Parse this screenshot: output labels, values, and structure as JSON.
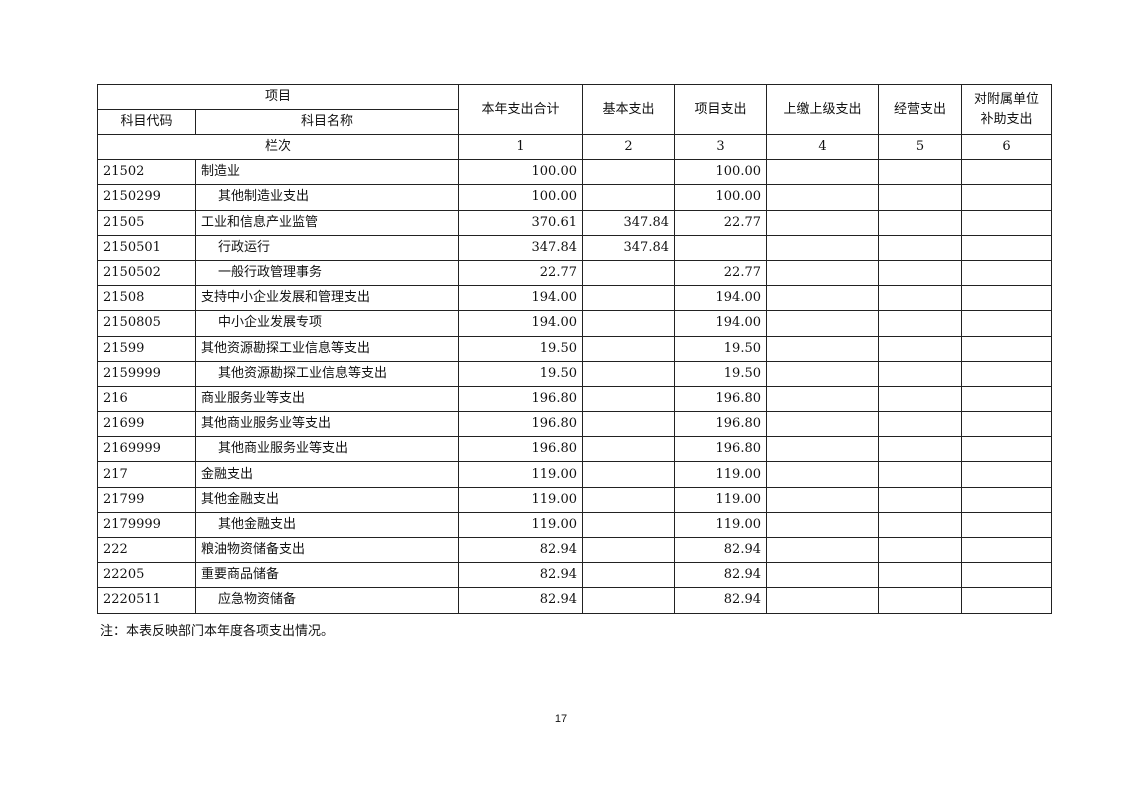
{
  "header": {
    "item": "项目",
    "code": "科目代码",
    "name": "科目名称",
    "row_index_label": "栏次",
    "columns": [
      "本年支出合计",
      "基本支出",
      "项目支出",
      "上缴上级支出",
      "经营支出",
      "对附属单位补助支出"
    ],
    "column_numbers": [
      "1",
      "2",
      "3",
      "4",
      "5",
      "6"
    ]
  },
  "rows": [
    {
      "code": "21502",
      "name": "制造业",
      "indent": false,
      "vals": [
        "100.00",
        "",
        "100.00",
        "",
        "",
        ""
      ]
    },
    {
      "code": "2150299",
      "name": "其他制造业支出",
      "indent": true,
      "vals": [
        "100.00",
        "",
        "100.00",
        "",
        "",
        ""
      ]
    },
    {
      "code": "21505",
      "name": "工业和信息产业监管",
      "indent": false,
      "vals": [
        "370.61",
        "347.84",
        "22.77",
        "",
        "",
        ""
      ]
    },
    {
      "code": "2150501",
      "name": "行政运行",
      "indent": true,
      "vals": [
        "347.84",
        "347.84",
        "",
        "",
        "",
        ""
      ]
    },
    {
      "code": "2150502",
      "name": "一般行政管理事务",
      "indent": true,
      "vals": [
        "22.77",
        "",
        "22.77",
        "",
        "",
        ""
      ]
    },
    {
      "code": "21508",
      "name": "支持中小企业发展和管理支出",
      "indent": false,
      "vals": [
        "194.00",
        "",
        "194.00",
        "",
        "",
        ""
      ]
    },
    {
      "code": "2150805",
      "name": "中小企业发展专项",
      "indent": true,
      "vals": [
        "194.00",
        "",
        "194.00",
        "",
        "",
        ""
      ]
    },
    {
      "code": "21599",
      "name": "其他资源勘探工业信息等支出",
      "indent": false,
      "vals": [
        "19.50",
        "",
        "19.50",
        "",
        "",
        ""
      ]
    },
    {
      "code": "2159999",
      "name": "其他资源勘探工业信息等支出",
      "indent": true,
      "vals": [
        "19.50",
        "",
        "19.50",
        "",
        "",
        ""
      ]
    },
    {
      "code": "216",
      "name": "商业服务业等支出",
      "indent": false,
      "vals": [
        "196.80",
        "",
        "196.80",
        "",
        "",
        ""
      ]
    },
    {
      "code": "21699",
      "name": "其他商业服务业等支出",
      "indent": false,
      "vals": [
        "196.80",
        "",
        "196.80",
        "",
        "",
        ""
      ]
    },
    {
      "code": "2169999",
      "name": "其他商业服务业等支出",
      "indent": true,
      "vals": [
        "196.80",
        "",
        "196.80",
        "",
        "",
        ""
      ]
    },
    {
      "code": "217",
      "name": "金融支出",
      "indent": false,
      "vals": [
        "119.00",
        "",
        "119.00",
        "",
        "",
        ""
      ]
    },
    {
      "code": "21799",
      "name": "其他金融支出",
      "indent": false,
      "vals": [
        "119.00",
        "",
        "119.00",
        "",
        "",
        ""
      ]
    },
    {
      "code": "2179999",
      "name": "其他金融支出",
      "indent": true,
      "vals": [
        "119.00",
        "",
        "119.00",
        "",
        "",
        ""
      ]
    },
    {
      "code": "222",
      "name": "粮油物资储备支出",
      "indent": false,
      "vals": [
        "82.94",
        "",
        "82.94",
        "",
        "",
        ""
      ]
    },
    {
      "code": "22205",
      "name": "重要商品储备",
      "indent": false,
      "vals": [
        "82.94",
        "",
        "82.94",
        "",
        "",
        ""
      ]
    },
    {
      "code": "2220511",
      "name": "应急物资储备",
      "indent": true,
      "vals": [
        "82.94",
        "",
        "82.94",
        "",
        "",
        ""
      ]
    }
  ],
  "note": "注：本表反映部门本年度各项支出情况。",
  "page_number": "17"
}
